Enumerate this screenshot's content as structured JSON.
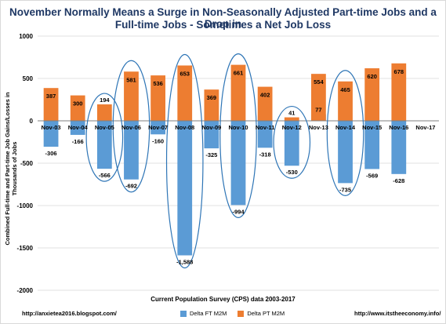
{
  "chart_data": {
    "type": "bar",
    "title_line1": "November Normally Means a Surge in Non-Seasonally Adjusted Part-time Jobs and a Drop in",
    "title_line2": "Full-time Jobs - Sometimes a Net Job Loss",
    "ylabel": "Combined Full-time and Part-time Job Gains/Losses in Thousands of Jobs",
    "xlabel": "Current Population Survey (CPS) data 2003-2017",
    "ylim": [
      -2000,
      1000
    ],
    "yticks": [
      1000,
      500,
      0,
      -500,
      -1000,
      -1500,
      -2000
    ],
    "grid": true,
    "categories": [
      "Nov-03",
      "Nov-04",
      "Nov-05",
      "Nov-06",
      "Nov-07",
      "Nov-08",
      "Nov-09",
      "Nov-10",
      "Nov-11",
      "Nov-12",
      "Nov-13",
      "Nov-14",
      "Nov-15",
      "Nov-16",
      "Nov-17"
    ],
    "series": [
      {
        "name": "Delta FT M2M",
        "color": "#5b9bd5",
        "values": [
          -306,
          -166,
          -566,
          -692,
          -160,
          -1588,
          -325,
          -994,
          -318,
          -530,
          77,
          -735,
          -569,
          -628,
          null
        ]
      },
      {
        "name": "Delta PT M2M",
        "color": "#ed7d31",
        "values": [
          387,
          300,
          194,
          581,
          536,
          653,
          369,
          661,
          402,
          41,
          554,
          465,
          620,
          678,
          null
        ]
      }
    ],
    "highlighted_categories": [
      "Nov-05",
      "Nov-06",
      "Nov-08",
      "Nov-10",
      "Nov-12",
      "Nov-14"
    ],
    "legend_position": "bottom"
  },
  "sources": {
    "left": "http://anxietea2016.blogspot.com/",
    "right": "http://www.itstheeconomy.info/"
  }
}
